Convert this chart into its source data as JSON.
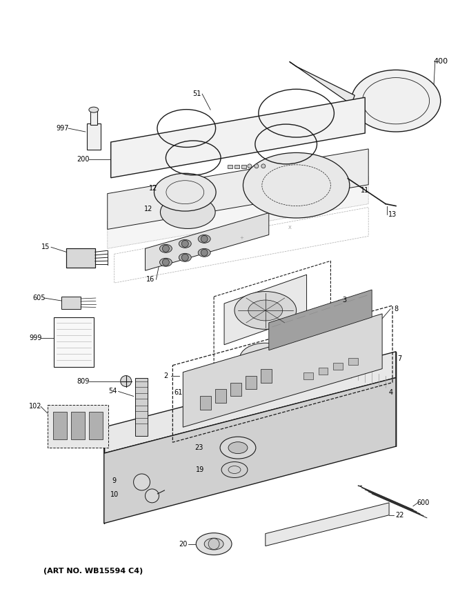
{
  "art_no": "(ART NO. WB15594 C4)",
  "bg_color": "#ffffff",
  "lc": "#1a1a1a"
}
